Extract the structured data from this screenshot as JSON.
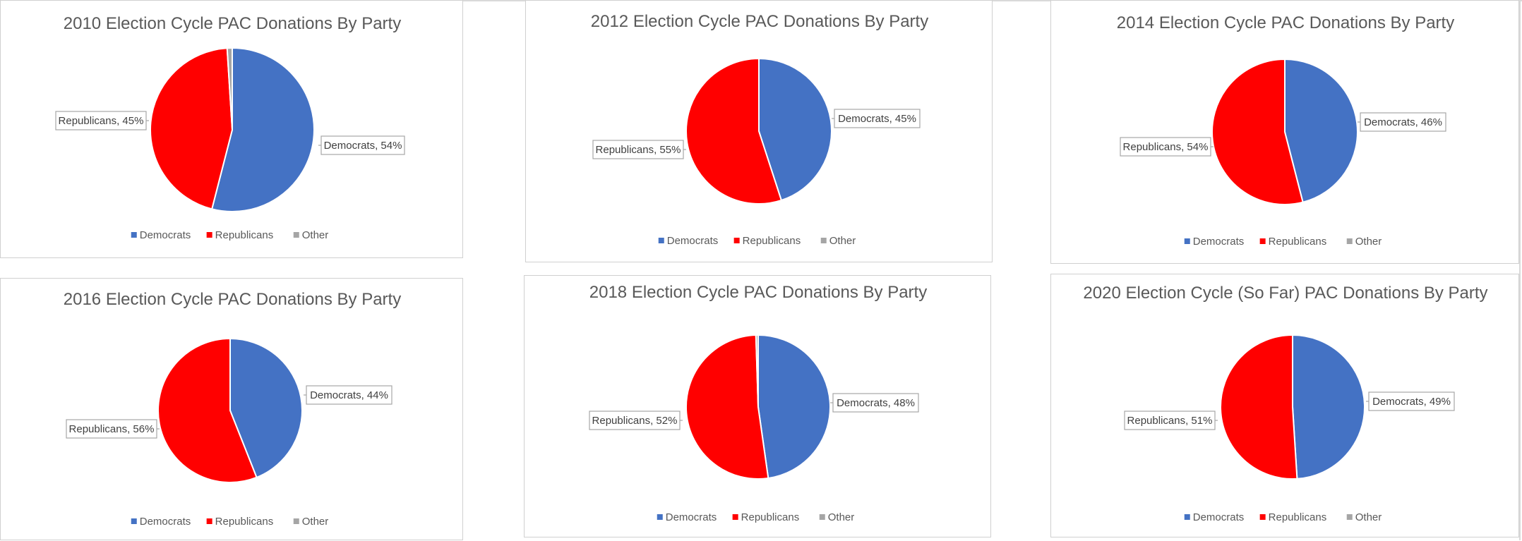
{
  "chart_data": [
    {
      "type": "pie",
      "title": "2010 Election Cycle PAC Donations By Party",
      "categories": [
        "Democrats",
        "Republicans",
        "Other"
      ],
      "values": [
        54,
        45,
        1
      ],
      "data_labels": [
        "Democrats, 54%",
        "Republicans, 45%",
        ""
      ],
      "colors": [
        "#4472C4",
        "#FF0000",
        "#A5A5A5"
      ],
      "legend": "bottom"
    },
    {
      "type": "pie",
      "title": "2012 Election Cycle PAC Donations By Party",
      "categories": [
        "Democrats",
        "Republicans",
        "Other"
      ],
      "values": [
        45,
        55,
        0
      ],
      "data_labels": [
        "Democrats, 45%",
        "Republicans, 55%",
        ""
      ],
      "colors": [
        "#4472C4",
        "#FF0000",
        "#A5A5A5"
      ],
      "legend": "bottom"
    },
    {
      "type": "pie",
      "title": "2014 Election Cycle  PAC Donations By Party",
      "categories": [
        "Democrats",
        "Republicans",
        "Other"
      ],
      "values": [
        46,
        54,
        0
      ],
      "data_labels": [
        "Democrats, 46%",
        "Republicans, 54%",
        ""
      ],
      "colors": [
        "#4472C4",
        "#FF0000",
        "#A5A5A5"
      ],
      "legend": "bottom"
    },
    {
      "type": "pie",
      "title": "2016 Election Cycle PAC Donations By Party",
      "categories": [
        "Democrats",
        "Republicans",
        "Other"
      ],
      "values": [
        44,
        56,
        0
      ],
      "data_labels": [
        "Democrats, 44%",
        "Republicans, 56%",
        ""
      ],
      "colors": [
        "#4472C4",
        "#FF0000",
        "#A5A5A5"
      ],
      "legend": "bottom"
    },
    {
      "type": "pie",
      "title": "2018 Election Cycle PAC Donations By Party",
      "categories": [
        "Democrats",
        "Republicans",
        "Other"
      ],
      "values": [
        48,
        52,
        0.5
      ],
      "data_labels": [
        "Democrats, 48%",
        "Republicans, 52%",
        ""
      ],
      "colors": [
        "#4472C4",
        "#FF0000",
        "#A5A5A5"
      ],
      "legend": "bottom"
    },
    {
      "type": "pie",
      "title": "2020 Election Cycle (So Far) PAC Donations By Party",
      "categories": [
        "Democrats",
        "Republicans",
        "Other"
      ],
      "values": [
        49,
        51,
        0
      ],
      "data_labels": [
        "Democrats, 49%",
        "Republicans, 51%",
        ""
      ],
      "colors": [
        "#4472C4",
        "#FF0000",
        "#A5A5A5"
      ],
      "legend": "bottom"
    }
  ]
}
